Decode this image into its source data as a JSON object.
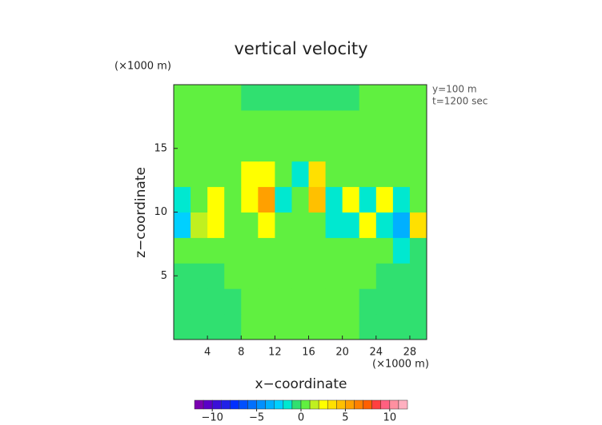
{
  "chart_data": {
    "type": "contour",
    "title": "vertical velocity",
    "xlabel": "x−coordinate",
    "ylabel": "z−coordinate",
    "x_unit": "(×1000 m)",
    "y_unit": "(×1000 m)",
    "annotations": [
      "y=100 m",
      "t=1200 sec"
    ],
    "x": [
      1,
      3,
      5,
      7,
      9,
      11,
      13,
      15,
      17,
      19,
      21,
      23,
      25,
      27,
      29
    ],
    "y": [
      1,
      3,
      5,
      7,
      9,
      11,
      13,
      15,
      17,
      19
    ],
    "z": [
      [
        -0.5,
        -0.5,
        -0.5,
        -0.5,
        0.5,
        0.5,
        0.5,
        0.5,
        0.5,
        0.5,
        0.5,
        -0.5,
        -0.5,
        -0.5,
        -0.5
      ],
      [
        -0.5,
        -0.5,
        -0.5,
        -0.5,
        0.5,
        0.5,
        0.5,
        0.5,
        0.5,
        0.5,
        0.5,
        -0.5,
        -0.5,
        -0.5,
        -0.5
      ],
      [
        -0.5,
        -0.5,
        -0.5,
        0.5,
        0.5,
        0.5,
        0.5,
        0.5,
        0.5,
        0.5,
        0.5,
        0.5,
        -0.5,
        -0.5,
        -0.5
      ],
      [
        0.5,
        0.5,
        0.5,
        0.5,
        0.5,
        0.5,
        0.5,
        0.5,
        0.5,
        0.5,
        0.5,
        0.5,
        0.5,
        -1.5,
        -0.5
      ],
      [
        -3,
        1.5,
        2.5,
        0.5,
        0.5,
        2.5,
        0.5,
        0.5,
        0.5,
        -1.5,
        -2,
        2.5,
        -1.5,
        -3.5,
        3
      ],
      [
        -2,
        0.5,
        2.5,
        0.5,
        2.5,
        5.5,
        -1.5,
        0.5,
        4,
        -2,
        2,
        -2,
        2.5,
        -2,
        0.5
      ],
      [
        0.5,
        0.5,
        0.5,
        0.5,
        2.5,
        2.5,
        0.5,
        -1.5,
        3,
        0.5,
        0.5,
        0.5,
        0.5,
        0.5,
        0.5
      ],
      [
        0.5,
        0.5,
        0.5,
        0.5,
        0.5,
        0.5,
        0.5,
        0.5,
        0.5,
        0.5,
        0.5,
        0.5,
        0.5,
        0.5,
        0.5
      ],
      [
        0.5,
        0.5,
        0.5,
        0.5,
        0.5,
        0.5,
        0.5,
        0.5,
        0.5,
        0.5,
        0.5,
        0.5,
        0.5,
        0.5,
        0.5
      ],
      [
        0.5,
        0.5,
        0.5,
        0.5,
        -0.5,
        -0.5,
        -0.5,
        -0.5,
        -0.5,
        -0.5,
        -0.5,
        0.5,
        0.5,
        0.5,
        0.5
      ]
    ],
    "xlim": [
      0,
      30
    ],
    "ylim": [
      0,
      20
    ],
    "xticks": [
      4,
      8,
      12,
      16,
      20,
      24,
      28
    ],
    "yticks": [
      5,
      10,
      15
    ],
    "clim": [
      -12,
      12
    ],
    "colorscale": [
      "#7a00b0",
      "#5a00c8",
      "#3a10d8",
      "#2020e8",
      "#0030ff",
      "#0050ff",
      "#0070ff",
      "#0090ff",
      "#00b0ff",
      "#00d0ff",
      "#00e8d0",
      "#30e070",
      "#60f040",
      "#c0f020",
      "#ffff00",
      "#ffe000",
      "#ffc000",
      "#ffa000",
      "#ff8000",
      "#ff6000",
      "#ff4040",
      "#ff6080",
      "#ff90a0",
      "#ffb0c0"
    ],
    "cticks": [
      {
        "value": -10,
        "label": "−10"
      },
      {
        "value": -5,
        "label": "−5"
      },
      0,
      5,
      10
    ]
  }
}
